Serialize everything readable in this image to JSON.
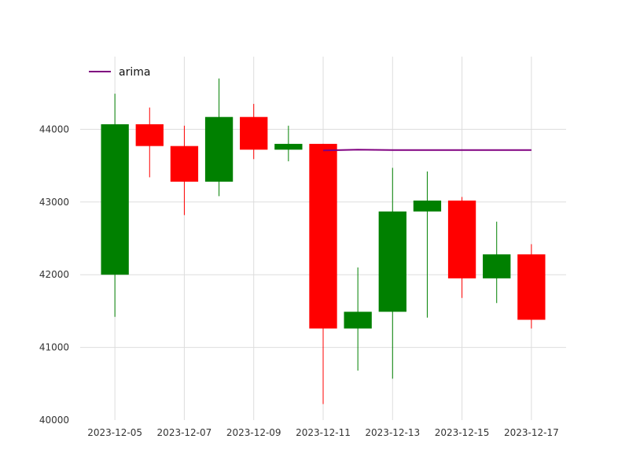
{
  "chart_data": {
    "type": "candlestick",
    "title": "",
    "xlabel": "",
    "ylabel": "",
    "ylim": [
      40000,
      45000
    ],
    "y_ticks": [
      40000,
      41000,
      42000,
      43000,
      44000
    ],
    "x_range": [
      "2023-12-04",
      "2023-12-18"
    ],
    "x_ticks": [
      "2023-12-05",
      "2023-12-07",
      "2023-12-09",
      "2023-12-11",
      "2023-12-13",
      "2023-12-15",
      "2023-12-17"
    ],
    "grid": true,
    "legend_position": "top-left",
    "colors": {
      "up": "#008000",
      "down": "#ff0000",
      "forecast": "#800080",
      "grid": "#dddddd"
    },
    "candles": [
      {
        "date": "2023-12-05",
        "open": 42000,
        "high": 44490,
        "low": 41420,
        "close": 44070
      },
      {
        "date": "2023-12-06",
        "open": 44070,
        "high": 44300,
        "low": 43340,
        "close": 43770
      },
      {
        "date": "2023-12-07",
        "open": 43770,
        "high": 44050,
        "low": 42820,
        "close": 43280
      },
      {
        "date": "2023-12-08",
        "open": 43280,
        "high": 44700,
        "low": 43080,
        "close": 44170
      },
      {
        "date": "2023-12-09",
        "open": 44170,
        "high": 44350,
        "low": 43590,
        "close": 43720
      },
      {
        "date": "2023-12-10",
        "open": 43720,
        "high": 44050,
        "low": 43560,
        "close": 43800
      },
      {
        "date": "2023-12-11",
        "open": 43800,
        "high": 43800,
        "low": 40220,
        "close": 41260
      },
      {
        "date": "2023-12-12",
        "open": 41260,
        "high": 42100,
        "low": 40680,
        "close": 41490
      },
      {
        "date": "2023-12-13",
        "open": 41490,
        "high": 43470,
        "low": 40570,
        "close": 42870
      },
      {
        "date": "2023-12-14",
        "open": 42870,
        "high": 43420,
        "low": 41410,
        "close": 43020
      },
      {
        "date": "2023-12-15",
        "open": 43020,
        "high": 43070,
        "low": 41680,
        "close": 41950
      },
      {
        "date": "2023-12-16",
        "open": 41950,
        "high": 42730,
        "low": 41610,
        "close": 42280
      },
      {
        "date": "2023-12-17",
        "open": 42280,
        "high": 42420,
        "low": 41260,
        "close": 41380
      }
    ],
    "series": [
      {
        "name": "arima",
        "x": [
          "2023-12-11",
          "2023-12-12",
          "2023-12-13",
          "2023-12-14",
          "2023-12-15",
          "2023-12-16",
          "2023-12-17"
        ],
        "values": [
          43710,
          43720,
          43715,
          43715,
          43715,
          43715,
          43715
        ]
      }
    ]
  }
}
